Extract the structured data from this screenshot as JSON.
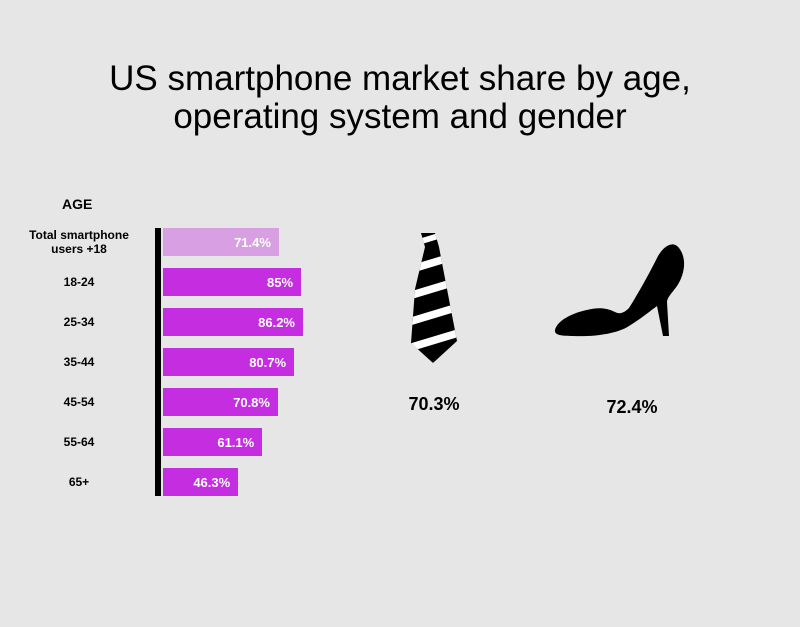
{
  "chart_data": {
    "type": "bar",
    "title_lines": [
      "US smartphone market share by age,",
      "operating system and gender"
    ],
    "axis_header": "AGE",
    "categories": [
      [
        "Total smartphone",
        "users +18"
      ],
      [
        "18-24"
      ],
      [
        "25-34"
      ],
      [
        "35-44"
      ],
      [
        "45-54"
      ],
      [
        "55-64"
      ],
      [
        "65+"
      ]
    ],
    "values": [
      71.4,
      85,
      86.2,
      80.7,
      70.8,
      61.1,
      46.3
    ],
    "value_labels": [
      "71.4%",
      "85%",
      "86.2%",
      "80.7%",
      "70.8%",
      "61.1%",
      "46.3%"
    ],
    "bar_colors": [
      "#d89fe3",
      "#c52ee0",
      "#c52ee0",
      "#c52ee0",
      "#c52ee0",
      "#c52ee0",
      "#c52ee0"
    ],
    "gender": [
      {
        "icon": "necktie-icon",
        "value": 70.3,
        "label": "70.3%"
      },
      {
        "icon": "high-heel-shoe-icon",
        "value": 72.4,
        "label": "72.4%"
      }
    ]
  }
}
